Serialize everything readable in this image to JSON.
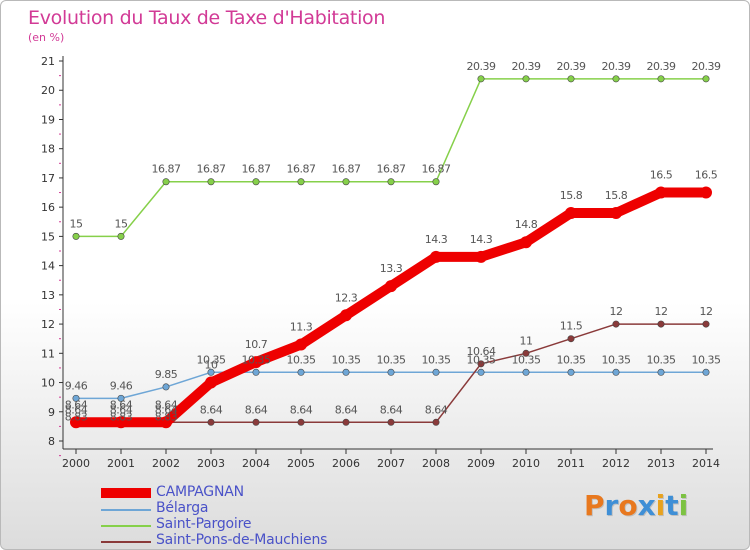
{
  "header": {
    "title": "Evolution du Taux de Taxe d'Habitation",
    "unit": "(en %)"
  },
  "logo": {
    "text": "Proxiti",
    "colors": [
      "#e8781e",
      "#3f8fd6",
      "#e8781e",
      "#3f8fd6",
      "#e8a21e",
      "#3f8fd6",
      "#7cc242"
    ]
  },
  "chart_data": {
    "type": "line",
    "title": "Evolution du Taux de Taxe d'Habitation",
    "xlabel": "",
    "ylabel": "(en %)",
    "x": [
      2000,
      2001,
      2002,
      2003,
      2004,
      2005,
      2006,
      2007,
      2008,
      2009,
      2010,
      2011,
      2012,
      2013,
      2014
    ],
    "ylim": [
      8,
      21
    ],
    "yticks": [
      8,
      9,
      10,
      11,
      12,
      13,
      14,
      15,
      16,
      17,
      18,
      19,
      20,
      21
    ],
    "grid": false,
    "legend_position": "bottom-left",
    "series": [
      {
        "name": "CAMPAGNAN",
        "color": "#ee0000",
        "values": [
          8.64,
          8.64,
          8.64,
          10,
          10.7,
          11.3,
          12.3,
          13.3,
          14.3,
          14.3,
          14.8,
          15.8,
          15.8,
          16.5,
          16.5
        ],
        "labels": [
          "8.64",
          "8.64",
          "8.64",
          "10",
          "10.7",
          "11.3",
          "12.3",
          "13.3",
          "14.3",
          "14.3",
          "14.8",
          "15.8",
          "15.8",
          "16.5",
          "16.5"
        ]
      },
      {
        "name": "Bélarga",
        "color": "#6ea6d6",
        "values": [
          9.46,
          9.46,
          9.85,
          10.35,
          10.35,
          10.35,
          10.35,
          10.35,
          10.35,
          10.35,
          10.35,
          10.35,
          10.35,
          10.35,
          10.35
        ],
        "labels": [
          "9.46",
          "9.46",
          "9.85",
          "10.35",
          "10.35",
          "10.35",
          "10.35",
          "10.35",
          "10.35",
          "10.35",
          "10.35",
          "10.35",
          "10.35",
          "10.35",
          "10.35"
        ]
      },
      {
        "name": "Saint-Pargoire",
        "color": "#86d04a",
        "values": [
          15,
          15,
          16.87,
          16.87,
          16.87,
          16.87,
          16.87,
          16.87,
          16.87,
          20.39,
          20.39,
          20.39,
          20.39,
          20.39,
          20.39
        ],
        "labels": [
          "15",
          "15",
          "16.87",
          "16.87",
          "16.87",
          "16.87",
          "16.87",
          "16.87",
          "16.87",
          "20.39",
          "20.39",
          "20.39",
          "20.39",
          "20.39",
          "20.39"
        ]
      },
      {
        "name": "Saint-Pons-de-Mauchiens",
        "color": "#8a3a3a",
        "values": [
          8.64,
          8.64,
          8.64,
          8.64,
          8.64,
          8.64,
          8.64,
          8.64,
          8.64,
          10.64,
          11,
          11.5,
          12,
          12,
          12
        ],
        "labels": [
          "8.64",
          "8.64",
          "8.64",
          "8.64",
          "8.64",
          "8.64",
          "8.64",
          "8.64",
          "8.64",
          "10.64",
          "11",
          "11.5",
          "12",
          "12",
          "12"
        ]
      }
    ],
    "extra_labels": [
      "8.83",
      "8.83",
      "8.83"
    ]
  }
}
